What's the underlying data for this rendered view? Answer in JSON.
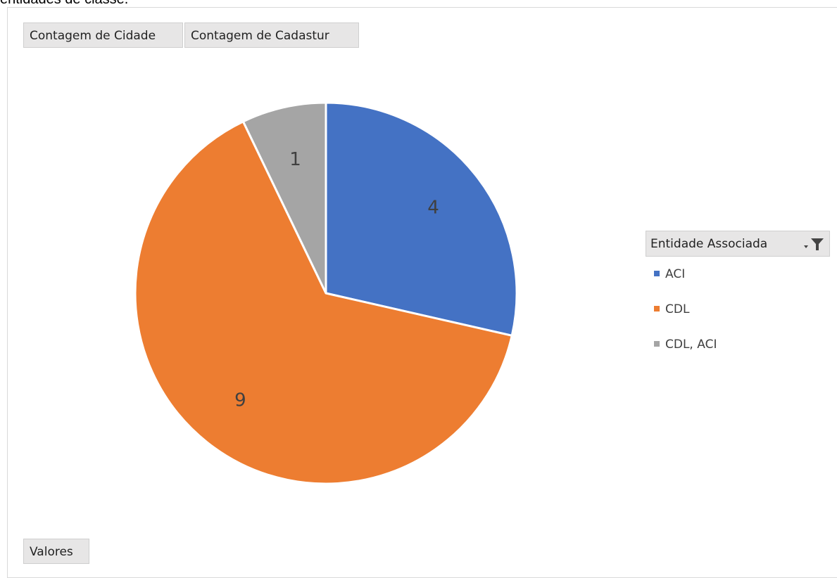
{
  "header_text": "entidades de classe.",
  "field_buttons": {
    "cidade": "Contagem de Cidade",
    "cadastur": "Contagem de Cadastur",
    "valores": "Valores"
  },
  "legend": {
    "title": "Entidade Associada",
    "filter_icon": "filter-dropdown-icon"
  },
  "colors": {
    "ACI": "#4472c4",
    "CDL": "#ed7d31",
    "CDL, ACI": "#a5a5a5"
  },
  "chart_data": {
    "type": "pie",
    "categories": [
      "ACI",
      "CDL",
      "CDL, ACI"
    ],
    "values": [
      4,
      9,
      1
    ],
    "data_labels": [
      "4",
      "9",
      "1"
    ],
    "title": "",
    "legend_position": "right"
  }
}
